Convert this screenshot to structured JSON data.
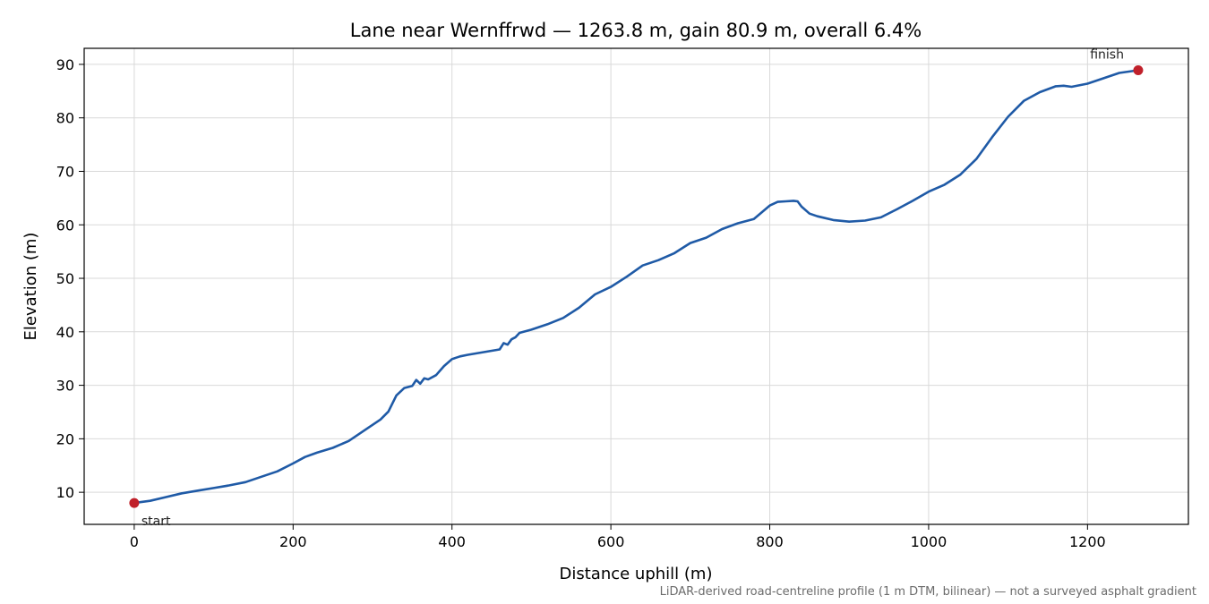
{
  "chart_data": {
    "type": "line",
    "title": "Lane near Wernffrwd — 1263.8 m, gain 80.9 m, overall 6.4%",
    "xlabel": "Distance uphill (m)",
    "ylabel": "Elevation (m)",
    "footnote": "LiDAR-derived road-centreline profile (1 m DTM, bilinear) — not a surveyed asphalt gradient",
    "xlim": [
      -63,
      1327
    ],
    "ylim": [
      4,
      93
    ],
    "xticks": [
      0,
      200,
      400,
      600,
      800,
      1000,
      1200
    ],
    "yticks": [
      10,
      20,
      30,
      40,
      50,
      60,
      70,
      80,
      90
    ],
    "grid": true,
    "line_color": "#1f5aa6",
    "marker_color": "#c0202a",
    "series": [
      {
        "x": [
          0,
          20,
          40,
          60,
          80,
          100,
          120,
          140,
          160,
          180,
          200,
          215,
          230,
          250,
          270,
          290,
          310,
          320,
          330,
          340,
          350,
          355,
          360,
          365,
          370,
          380,
          390,
          400,
          410,
          420,
          440,
          460,
          465,
          470,
          475,
          480,
          485,
          500,
          520,
          540,
          560,
          580,
          600,
          620,
          640,
          660,
          680,
          700,
          720,
          740,
          760,
          780,
          800,
          810,
          820,
          830,
          835,
          840,
          850,
          860,
          880,
          900,
          920,
          940,
          960,
          980,
          1000,
          1020,
          1040,
          1060,
          1080,
          1100,
          1120,
          1140,
          1160,
          1170,
          1180,
          1200,
          1220,
          1240,
          1263.8
        ],
        "y": [
          8,
          8.4,
          9.1,
          9.8,
          10.3,
          10.8,
          11.3,
          11.9,
          12.9,
          13.9,
          15.4,
          16.6,
          17.4,
          18.3,
          19.6,
          21.6,
          23.6,
          25.1,
          28.1,
          29.5,
          29.9,
          31.0,
          30.3,
          31.3,
          31.1,
          31.9,
          33.6,
          34.9,
          35.4,
          35.7,
          36.2,
          36.7,
          37.9,
          37.6,
          38.6,
          39.0,
          39.8,
          40.4,
          41.4,
          42.6,
          44.5,
          47.0,
          48.4,
          50.3,
          52.4,
          53.4,
          54.7,
          56.6,
          57.6,
          59.2,
          60.3,
          61.1,
          63.6,
          64.3,
          64.4,
          64.5,
          64.4,
          63.4,
          62.1,
          61.6,
          60.9,
          60.6,
          60.8,
          61.4,
          62.9,
          64.5,
          66.2,
          67.5,
          69.4,
          72.3,
          76.4,
          80.2,
          83.2,
          84.8,
          85.9,
          86.0,
          85.8,
          86.4,
          87.4,
          88.4,
          88.9
        ]
      }
    ],
    "annotations": [
      {
        "label": "start",
        "x": 0,
        "y": 8
      },
      {
        "label": "finish",
        "x": 1263.8,
        "y": 88.9
      }
    ]
  }
}
